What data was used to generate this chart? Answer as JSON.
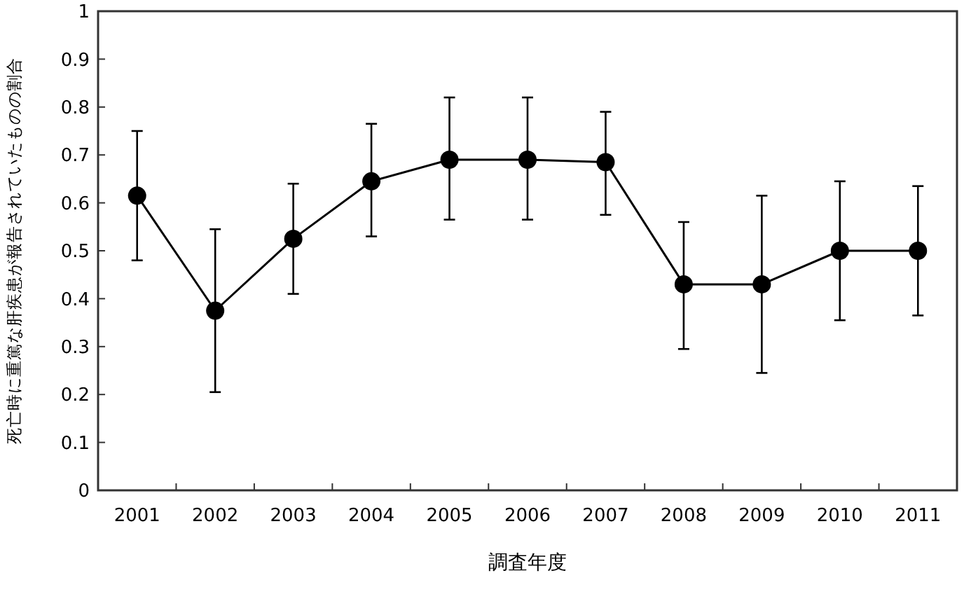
{
  "chart_data": {
    "type": "line",
    "xlabel": "調査年度",
    "ylabel": "死亡時に重篤な肝疾患が報告されていたものの割合",
    "categories": [
      "2001",
      "2002",
      "2003",
      "2004",
      "2005",
      "2006",
      "2007",
      "2008",
      "2009",
      "2010",
      "2011"
    ],
    "series": [
      {
        "color": "#000000",
        "values": [
          0.615,
          0.375,
          0.525,
          0.645,
          0.69,
          0.69,
          0.685,
          0.43,
          0.43,
          0.5,
          0.5
        ],
        "errors": [
          [
            0.48,
            0.75
          ],
          [
            0.205,
            0.545
          ],
          [
            0.41,
            0.64
          ],
          [
            0.53,
            0.765
          ],
          [
            0.565,
            0.82
          ],
          [
            0.565,
            0.82
          ],
          [
            0.575,
            0.79
          ],
          [
            0.295,
            0.56
          ],
          [
            0.245,
            0.615
          ],
          [
            0.355,
            0.645
          ],
          [
            0.365,
            0.635
          ]
        ]
      }
    ],
    "ylim": [
      0,
      1
    ],
    "yticks": [
      0,
      0.1,
      0.2,
      0.3,
      0.4,
      0.5,
      0.6,
      0.7,
      0.8,
      0.9,
      1
    ],
    "marker": "circle",
    "line_style": "solid"
  }
}
